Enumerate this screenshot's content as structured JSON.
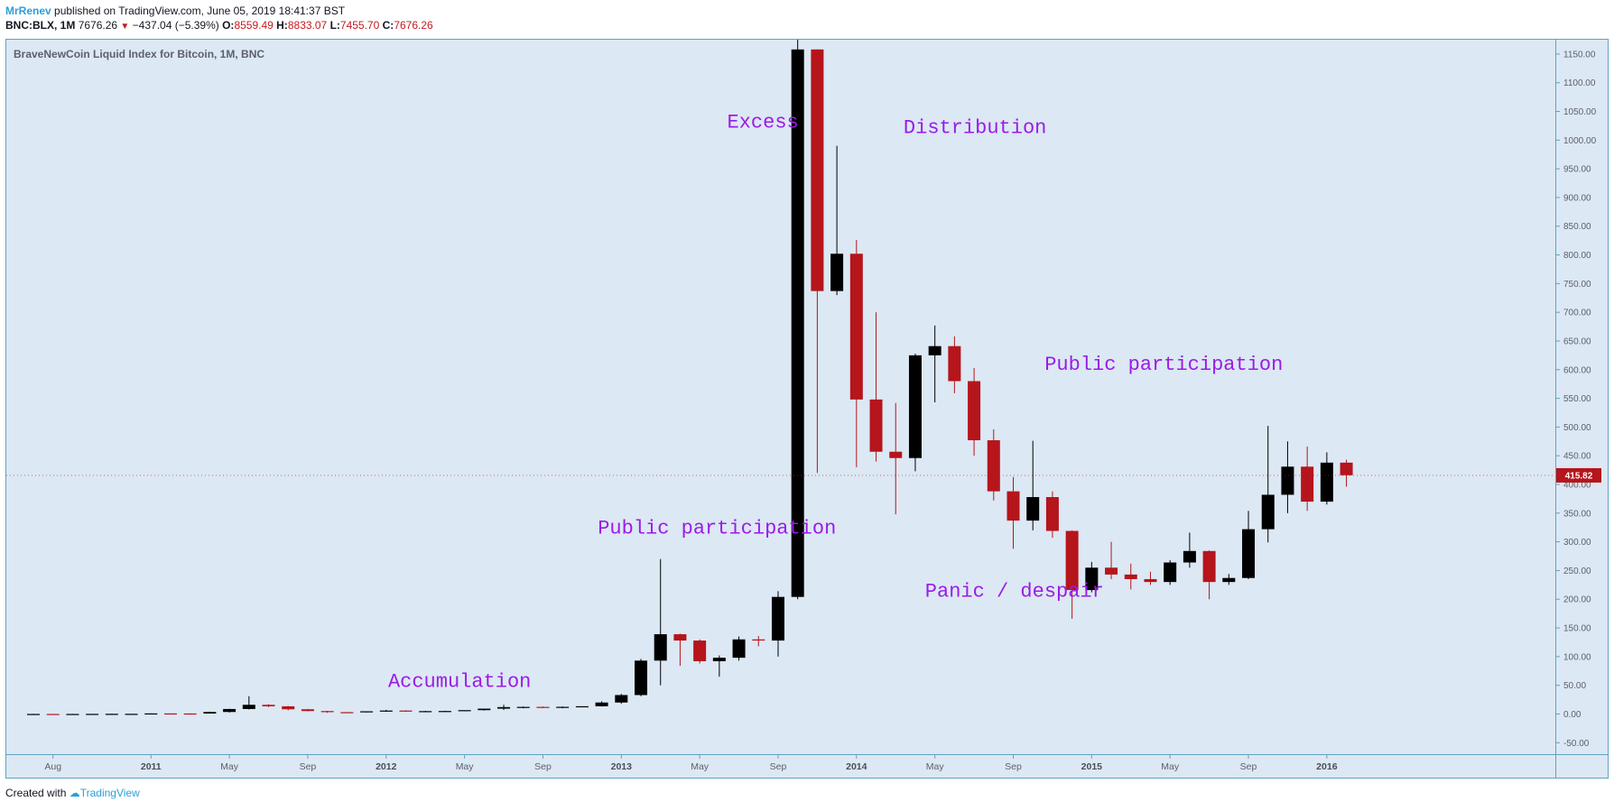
{
  "header": {
    "author": "MrRenev",
    "published": "published on TradingView.com, June 05, 2019 18:41:37 BST",
    "symbol": "BNC:BLX, 1M",
    "last": "7676.26",
    "change": "−437.04 (−5.39%)",
    "o_label": "O:",
    "o_value": "8559.49",
    "h_label": "H:",
    "h_value": "8833.07",
    "l_label": "L:",
    "l_value": "7455.70",
    "c_label": "C:",
    "c_value": "7676.26"
  },
  "footer": {
    "created_with": "Created with",
    "brand": "TradingView"
  },
  "colors": {
    "background": "#dce8f4",
    "up": "#000000",
    "down": "#b5151b",
    "annotation": "#9a1be8",
    "border": "#5fa3c4"
  },
  "chart_data": {
    "type": "candlestick",
    "title": "BraveNewCoin Liquid Index for Bitcoin, 1M, BNC",
    "ylim": [
      -70,
      1175
    ],
    "y_ticks": [
      -50,
      0,
      50,
      100,
      150,
      200,
      250,
      300,
      350,
      400,
      450,
      500,
      550,
      600,
      650,
      700,
      750,
      800,
      850,
      900,
      950,
      1000,
      1050,
      1100,
      1150
    ],
    "y_tick_labels": [
      "-50.00",
      "0.00",
      "50.00",
      "100.00",
      "150.00",
      "200.00",
      "250.00",
      "300.00",
      "350.00",
      "400.00",
      "450.00",
      "500.00",
      "550.00",
      "600.00",
      "650.00",
      "700.00",
      "750.00",
      "800.00",
      "850.00",
      "900.00",
      "950.00",
      "1000.00",
      "1050.00",
      "1100.00",
      "1150.00"
    ],
    "x_ticks": [
      {
        "index": 1,
        "label": "Aug",
        "major": false
      },
      {
        "index": 6,
        "label": "2011",
        "major": true
      },
      {
        "index": 10,
        "label": "May",
        "major": false
      },
      {
        "index": 14,
        "label": "Sep",
        "major": false
      },
      {
        "index": 18,
        "label": "2012",
        "major": true
      },
      {
        "index": 22,
        "label": "May",
        "major": false
      },
      {
        "index": 26,
        "label": "Sep",
        "major": false
      },
      {
        "index": 30,
        "label": "2013",
        "major": true
      },
      {
        "index": 34,
        "label": "May",
        "major": false
      },
      {
        "index": 38,
        "label": "Sep",
        "major": false
      },
      {
        "index": 42,
        "label": "2014",
        "major": true
      },
      {
        "index": 46,
        "label": "May",
        "major": false
      },
      {
        "index": 50,
        "label": "Sep",
        "major": false
      },
      {
        "index": 54,
        "label": "2015",
        "major": true
      },
      {
        "index": 58,
        "label": "May",
        "major": false
      },
      {
        "index": 62,
        "label": "Sep",
        "major": false
      },
      {
        "index": 66,
        "label": "2016",
        "major": true
      }
    ],
    "current_price": 415.82,
    "current_price_label": "415.82",
    "candles": [
      {
        "o": 0.06,
        "h": 0.08,
        "l": 0.05,
        "c": 0.07
      },
      {
        "o": 0.07,
        "h": 0.2,
        "l": 0.06,
        "c": 0.06
      },
      {
        "o": 0.06,
        "h": 0.2,
        "l": 0.05,
        "c": 0.06
      },
      {
        "o": 0.06,
        "h": 0.2,
        "l": 0.06,
        "c": 0.2
      },
      {
        "o": 0.2,
        "h": 0.5,
        "l": 0.2,
        "c": 0.3
      },
      {
        "o": 0.3,
        "h": 0.3,
        "l": 0.2,
        "c": 0.3
      },
      {
        "o": 0.3,
        "h": 1.1,
        "l": 0.3,
        "c": 1.0
      },
      {
        "o": 1.0,
        "h": 1.1,
        "l": 0.7,
        "c": 0.9
      },
      {
        "o": 0.9,
        "h": 1.0,
        "l": 0.7,
        "c": 0.8
      },
      {
        "o": 0.8,
        "h": 4.0,
        "l": 0.7,
        "c": 3.5
      },
      {
        "o": 3.5,
        "h": 9.0,
        "l": 2.5,
        "c": 8.7
      },
      {
        "o": 8.7,
        "h": 31.0,
        "l": 8.0,
        "c": 16.0
      },
      {
        "o": 16.0,
        "h": 17.0,
        "l": 12.0,
        "c": 13.4
      },
      {
        "o": 13.4,
        "h": 14.0,
        "l": 6.5,
        "c": 8.2
      },
      {
        "o": 8.2,
        "h": 8.8,
        "l": 4.7,
        "c": 5.1
      },
      {
        "o": 5.1,
        "h": 5.5,
        "l": 2.0,
        "c": 3.2
      },
      {
        "o": 3.2,
        "h": 3.4,
        "l": 2.0,
        "c": 2.9
      },
      {
        "o": 2.9,
        "h": 4.5,
        "l": 2.7,
        "c": 4.7
      },
      {
        "o": 4.7,
        "h": 7.2,
        "l": 4.0,
        "c": 6.0
      },
      {
        "o": 6.0,
        "h": 6.5,
        "l": 4.2,
        "c": 4.9
      },
      {
        "o": 4.9,
        "h": 5.5,
        "l": 4.3,
        "c": 5.0
      },
      {
        "o": 5.0,
        "h": 5.5,
        "l": 4.5,
        "c": 5.2
      },
      {
        "o": 5.2,
        "h": 6.0,
        "l": 4.8,
        "c": 6.7
      },
      {
        "o": 6.7,
        "h": 7.5,
        "l": 6.0,
        "c": 9.3
      },
      {
        "o": 9.3,
        "h": 16.0,
        "l": 7.0,
        "c": 12.0
      },
      {
        "o": 12.0,
        "h": 13.0,
        "l": 10.0,
        "c": 12.4
      },
      {
        "o": 12.4,
        "h": 13.0,
        "l": 10.5,
        "c": 11.0
      },
      {
        "o": 11.0,
        "h": 13.0,
        "l": 10.0,
        "c": 12.5
      },
      {
        "o": 12.5,
        "h": 13.5,
        "l": 12.0,
        "c": 13.5
      },
      {
        "o": 13.5,
        "h": 22.0,
        "l": 13.0,
        "c": 20.0
      },
      {
        "o": 20.0,
        "h": 35.0,
        "l": 18.0,
        "c": 33.0
      },
      {
        "o": 33.0,
        "h": 96.0,
        "l": 31.0,
        "c": 93.0
      },
      {
        "o": 93.0,
        "h": 270.0,
        "l": 50.0,
        "c": 139.0
      },
      {
        "o": 139.0,
        "h": 140.0,
        "l": 84.0,
        "c": 128.0
      },
      {
        "o": 128.0,
        "h": 130.0,
        "l": 88.0,
        "c": 92.0
      },
      {
        "o": 92.0,
        "h": 102.0,
        "l": 65.0,
        "c": 98.0
      },
      {
        "o": 98.0,
        "h": 135.0,
        "l": 93.0,
        "c": 130.0
      },
      {
        "o": 130.0,
        "h": 136.0,
        "l": 118.0,
        "c": 128.0
      },
      {
        "o": 128.0,
        "h": 214.0,
        "l": 100.0,
        "c": 204.0
      },
      {
        "o": 204.0,
        "h": 1175.0,
        "l": 200.0,
        "c": 1158.0
      },
      {
        "o": 1158.0,
        "h": 1158.0,
        "l": 420.0,
        "c": 737.0
      },
      {
        "o": 737.0,
        "h": 990.0,
        "l": 730.0,
        "c": 802.0
      },
      {
        "o": 802.0,
        "h": 826.0,
        "l": 430.0,
        "c": 548.0
      },
      {
        "o": 548.0,
        "h": 700.0,
        "l": 440.0,
        "c": 457.0
      },
      {
        "o": 457.0,
        "h": 542.0,
        "l": 348.0,
        "c": 446.0
      },
      {
        "o": 446.0,
        "h": 628.0,
        "l": 423.0,
        "c": 625.0
      },
      {
        "o": 625.0,
        "h": 677.0,
        "l": 543.0,
        "c": 641.0
      },
      {
        "o": 641.0,
        "h": 658.0,
        "l": 559.0,
        "c": 580.0
      },
      {
        "o": 580.0,
        "h": 603.0,
        "l": 450.0,
        "c": 477.0
      },
      {
        "o": 477.0,
        "h": 496.0,
        "l": 372.0,
        "c": 388.0
      },
      {
        "o": 388.0,
        "h": 413.0,
        "l": 288.0,
        "c": 337.0
      },
      {
        "o": 337.0,
        "h": 476.0,
        "l": 320.0,
        "c": 378.0
      },
      {
        "o": 378.0,
        "h": 388.0,
        "l": 307.0,
        "c": 319.0
      },
      {
        "o": 319.0,
        "h": 320.0,
        "l": 166.0,
        "c": 216.0
      },
      {
        "o": 216.0,
        "h": 265.0,
        "l": 212.0,
        "c": 255.0
      },
      {
        "o": 255.0,
        "h": 300.0,
        "l": 235.0,
        "c": 243.0
      },
      {
        "o": 243.0,
        "h": 262.0,
        "l": 217.0,
        "c": 235.0
      },
      {
        "o": 235.0,
        "h": 248.0,
        "l": 225.0,
        "c": 230.0
      },
      {
        "o": 230.0,
        "h": 268.0,
        "l": 225.0,
        "c": 264.0
      },
      {
        "o": 264.0,
        "h": 316.0,
        "l": 255.0,
        "c": 284.0
      },
      {
        "o": 284.0,
        "h": 285.0,
        "l": 200.0,
        "c": 230.0
      },
      {
        "o": 230.0,
        "h": 244.0,
        "l": 225.0,
        "c": 237.0
      },
      {
        "o": 237.0,
        "h": 354.0,
        "l": 235.0,
        "c": 322.0
      },
      {
        "o": 322.0,
        "h": 502.0,
        "l": 299.0,
        "c": 382.0
      },
      {
        "o": 382.0,
        "h": 475.0,
        "l": 350.0,
        "c": 431.0
      },
      {
        "o": 431.0,
        "h": 466.0,
        "l": 354.0,
        "c": 370.0
      },
      {
        "o": 370.0,
        "h": 456.0,
        "l": 365.0,
        "c": 438.0
      },
      {
        "o": 438.0,
        "h": 443.0,
        "l": 396.0,
        "c": 416.0
      }
    ],
    "annotations": [
      {
        "text": "Accumulation",
        "index": 18.1,
        "price": 47
      },
      {
        "text": "Public participation",
        "index": 28.8,
        "price": 314
      },
      {
        "text": "Excess",
        "index": 35.4,
        "price": 1022
      },
      {
        "text": "Distribution",
        "index": 44.4,
        "price": 1012
      },
      {
        "text": "Public participation",
        "index": 51.6,
        "price": 600
      },
      {
        "text": "Panic / despair",
        "index": 45.5,
        "price": 204
      }
    ]
  }
}
